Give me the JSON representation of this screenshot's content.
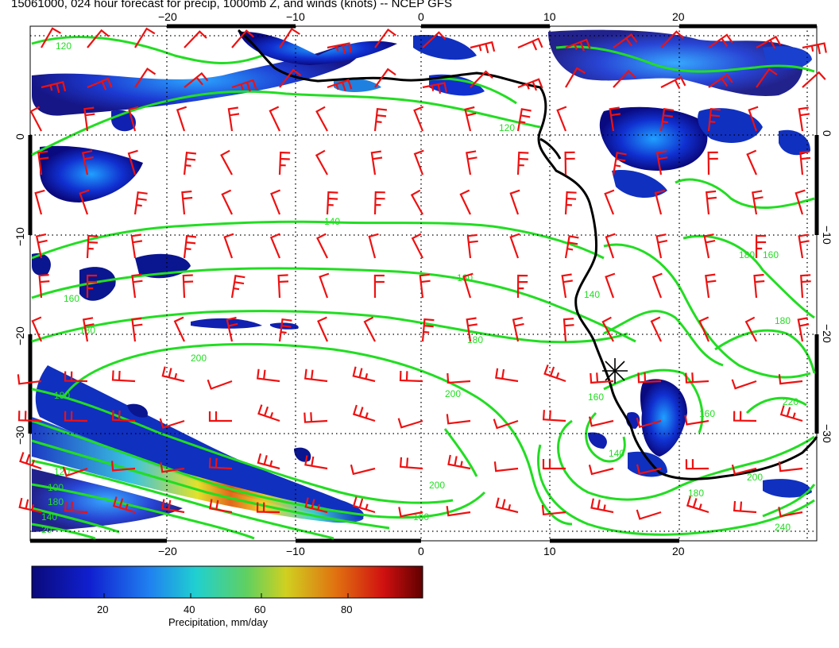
{
  "title": "15061000, 024 hour forecast for precip, 1000mb Z, and winds (knots) -- NCEP GFS",
  "axes": {
    "lon_ticks_top": [
      "−20",
      "−10",
      "0",
      "10",
      "20"
    ],
    "lon_ticks_bottom": [
      "−20",
      "−10",
      "0",
      "10",
      "20"
    ],
    "lat_ticks_left": [
      "0",
      "−10",
      "−20",
      "−30"
    ],
    "lat_ticks_right": [
      "0",
      "−10",
      "−20",
      "−30"
    ]
  },
  "contour_labels": [
    "120",
    "120",
    "140",
    "160",
    "160",
    "180",
    "180",
    "200",
    "200",
    "180",
    "160",
    "140",
    "160",
    "120",
    "100",
    "180",
    "140",
    "20",
    "180",
    "200",
    "160",
    "140",
    "180",
    "220",
    "200",
    "240",
    "160",
    "180"
  ],
  "colorbar": {
    "label": "Precipitation, mm/day",
    "ticks": [
      "20",
      "40",
      "60",
      "80"
    ]
  },
  "colors": {
    "contour": "#22dd22",
    "barb": "#ee1111",
    "coast": "#000000",
    "grid": "#000000"
  },
  "marker": "asterisk-station-icon"
}
